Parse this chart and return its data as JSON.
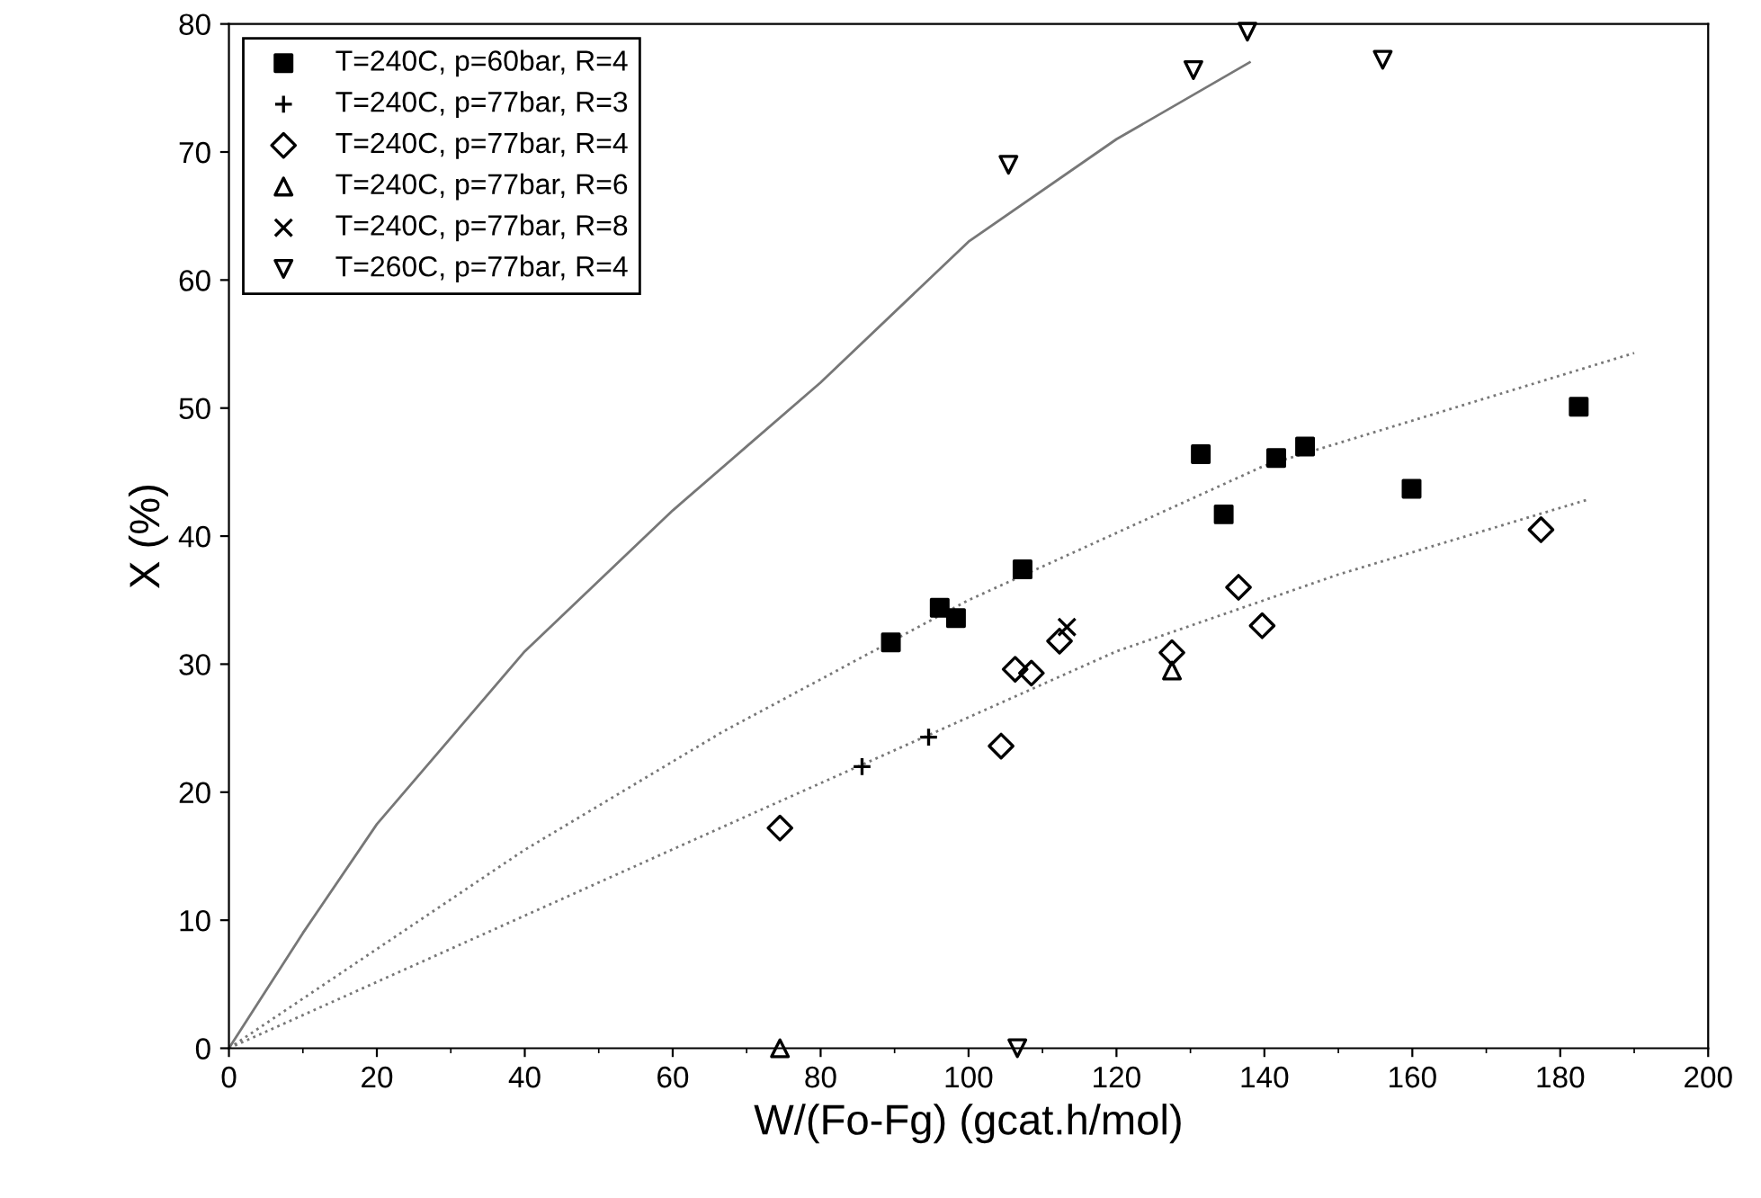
{
  "chart_data": {
    "type": "scatter",
    "xlabel": "W/(Fo-Fg) (gcat.h/mol)",
    "ylabel": "X (%)",
    "xlim": [
      0,
      200
    ],
    "xticks": [
      0,
      20,
      40,
      60,
      80,
      100,
      120,
      140,
      160,
      180,
      200
    ],
    "ylim": [
      0,
      80
    ],
    "yticks": [
      0,
      10,
      20,
      30,
      40,
      50,
      60,
      70,
      80
    ],
    "grid": false,
    "legend": "top left",
    "series": [
      {
        "name": "T=240C, p=60bar, R=4",
        "color": "#000000",
        "marker": "square",
        "x": [
          89.5,
          96.1,
          98.3,
          107.3,
          131.4,
          134.5,
          141.6,
          145.5,
          159.9,
          182.5
        ],
        "values": [
          31.7,
          34.4,
          33.6,
          37.4,
          46.4,
          41.7,
          46.1,
          47.0,
          43.7,
          50.1
        ]
      },
      {
        "name": "T=240C, p=77bar, R=3",
        "color": "#000000",
        "marker": "plus",
        "x": [
          85.6,
          94.6
        ],
        "values": [
          22.0,
          24.3
        ]
      },
      {
        "name": "T=240C, p=77bar, R=4",
        "color": "#000000",
        "marker": "diamond",
        "x": [
          74.5,
          104.4,
          106.3,
          108.5,
          112.3,
          127.5,
          136.5,
          139.7,
          177.4
        ],
        "values": [
          17.2,
          23.6,
          29.6,
          29.3,
          31.8,
          30.9,
          36.0,
          33.0,
          40.5
        ]
      },
      {
        "name": "T=240C, p=77bar, R=6",
        "color": "#000000",
        "marker": "triangle",
        "x": [
          74.5,
          127.5
        ],
        "values": [
          0,
          29.5
        ]
      },
      {
        "name": "T=240C, p=77bar, R=8",
        "color": "#000000",
        "marker": "cross",
        "x": [
          113.3
        ],
        "values": [
          32.9
        ]
      },
      {
        "name": "T=260C, p=77bar, R=4",
        "color": "#000000",
        "marker": "triangle_down",
        "x": [
          106.6,
          105.4,
          130.4,
          137.7,
          156.0
        ],
        "values": [
          0,
          69.0,
          76.4,
          79.4,
          77.2
        ]
      },
      {
        "type": "line",
        "color": "#777777",
        "line_style": "solid",
        "marker": "none",
        "x": [
          0,
          10,
          20,
          40,
          60,
          70,
          80,
          100,
          120,
          138
        ],
        "values": [
          0,
          9,
          17.5,
          31,
          42,
          47,
          52,
          63,
          71,
          77
        ]
      },
      {
        "type": "line",
        "color": "#777777",
        "line_style": "dotted",
        "marker": "none",
        "x": [
          0,
          40,
          66.7,
          100,
          140,
          190
        ],
        "values": [
          0,
          15.5,
          24.7,
          35,
          45.5,
          54.3
        ]
      },
      {
        "type": "line",
        "color": "#777777",
        "line_style": "dotted",
        "marker": "none",
        "x": [
          0,
          73,
          120,
          150,
          184
        ],
        "values": [
          0,
          18.9,
          31,
          37,
          42.9
        ]
      }
    ]
  }
}
